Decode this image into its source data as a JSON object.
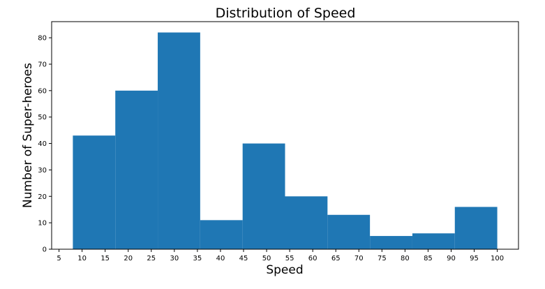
{
  "chart_data": {
    "type": "bar",
    "title": "Distribution of Speed",
    "xlabel": "Speed",
    "ylabel": "Number of Super-heroes",
    "xlim": [
      3.4,
      104.6
    ],
    "ylim": [
      0,
      86.1
    ],
    "x_ticks": [
      5,
      10,
      15,
      20,
      25,
      30,
      35,
      40,
      45,
      50,
      55,
      60,
      65,
      70,
      75,
      80,
      85,
      90,
      95,
      100
    ],
    "y_ticks": [
      0,
      10,
      20,
      30,
      40,
      50,
      60,
      70,
      80
    ],
    "bins": [
      {
        "start": 8.0,
        "end": 17.2,
        "count": 43
      },
      {
        "start": 17.2,
        "end": 26.4,
        "count": 60
      },
      {
        "start": 26.4,
        "end": 35.6,
        "count": 82
      },
      {
        "start": 35.6,
        "end": 44.8,
        "count": 11
      },
      {
        "start": 44.8,
        "end": 54.0,
        "count": 40
      },
      {
        "start": 54.0,
        "end": 63.2,
        "count": 20
      },
      {
        "start": 63.2,
        "end": 72.4,
        "count": 13
      },
      {
        "start": 72.4,
        "end": 81.6,
        "count": 5
      },
      {
        "start": 81.6,
        "end": 90.8,
        "count": 6
      },
      {
        "start": 90.8,
        "end": 100.0,
        "count": 16
      }
    ],
    "bar_color": "#1f77b4",
    "grid": false,
    "legend": "none"
  }
}
